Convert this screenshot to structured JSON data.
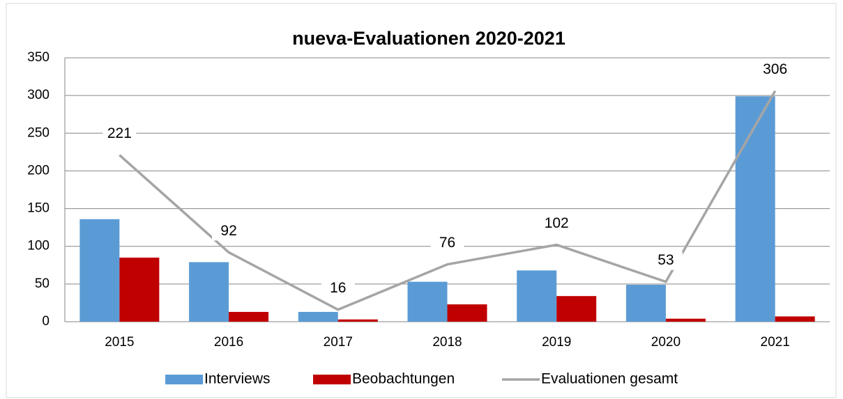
{
  "chart_data": {
    "type": "bar",
    "title": "nueva-Evaluationen 2020-2021",
    "categories": [
      "2015",
      "2016",
      "2017",
      "2018",
      "2019",
      "2020",
      "2021"
    ],
    "series": [
      {
        "name": "Interviews",
        "color": "#5b9bd5",
        "type": "bar",
        "values": [
          136,
          79,
          13,
          53,
          68,
          49,
          299
        ]
      },
      {
        "name": "Beobachtungen",
        "color": "#c00000",
        "type": "bar",
        "values": [
          85,
          13,
          3,
          23,
          34,
          4,
          7
        ]
      },
      {
        "name": "Evaluationen gesamt",
        "color": "#a5a5a5",
        "type": "line",
        "values": [
          221,
          92,
          16,
          76,
          102,
          53,
          306
        ],
        "data_labels": true
      }
    ],
    "ylim": [
      0,
      350
    ],
    "yticks": [
      0,
      50,
      100,
      150,
      200,
      250,
      300,
      350
    ],
    "grid": true,
    "legend": "bottom"
  }
}
